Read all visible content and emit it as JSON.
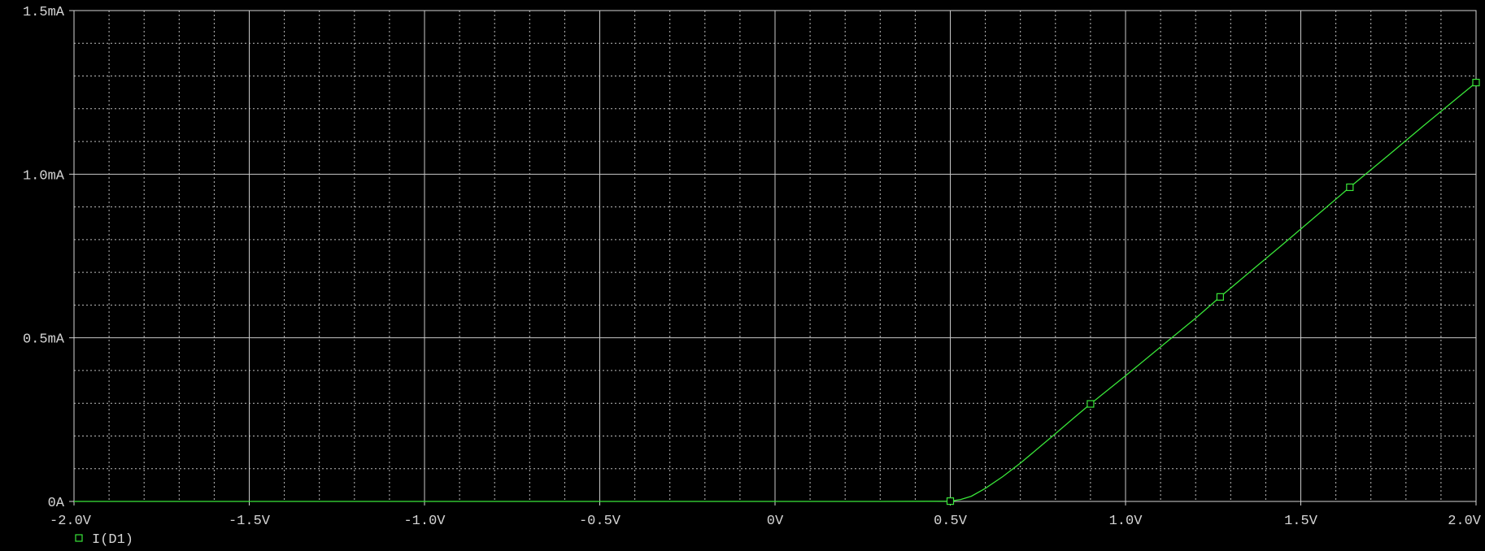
{
  "chart_data": {
    "type": "line",
    "title": "",
    "xlabel": "",
    "ylabel": "",
    "xlim": [
      -2.0,
      2.0
    ],
    "ylim": [
      0,
      1.5
    ],
    "x_ticks": [
      {
        "value": -2.0,
        "label": "-2.0V"
      },
      {
        "value": -1.5,
        "label": "-1.5V"
      },
      {
        "value": -1.0,
        "label": "-1.0V"
      },
      {
        "value": -0.5,
        "label": "-0.5V"
      },
      {
        "value": 0.0,
        "label": "0V"
      },
      {
        "value": 0.5,
        "label": "0.5V"
      },
      {
        "value": 1.0,
        "label": "1.0V"
      },
      {
        "value": 1.5,
        "label": "1.5V"
      },
      {
        "value": 2.0,
        "label": "2.0V"
      }
    ],
    "y_ticks": [
      {
        "value": 0.0,
        "label": "0A"
      },
      {
        "value": 0.5,
        "label": "0.5mA"
      },
      {
        "value": 1.0,
        "label": "1.0mA"
      },
      {
        "value": 1.5,
        "label": "1.5mA"
      }
    ],
    "grid": true,
    "legend_position": "bottom-left",
    "colors": {
      "background": "#000000",
      "axis": "#d4d4d4",
      "grid_major": "#c8c8c8",
      "grid_minor": "#bdbdbd",
      "trace": "#39e639"
    },
    "series": [
      {
        "name": "I(D1)",
        "marker": "square",
        "x": [
          -2.0,
          -1.5,
          -1.0,
          -0.5,
          0.0,
          0.3,
          0.45,
          0.5,
          0.53,
          0.56,
          0.6,
          0.65,
          0.7,
          0.75,
          0.8,
          0.85,
          0.9,
          1.0,
          1.1,
          1.2,
          1.27,
          1.35,
          1.45,
          1.55,
          1.64,
          1.75,
          1.85,
          1.95,
          2.0
        ],
        "y": [
          0,
          0,
          0,
          0,
          0,
          0,
          0.0005,
          0.001,
          0.006,
          0.016,
          0.04,
          0.076,
          0.117,
          0.162,
          0.207,
          0.253,
          0.298,
          0.384,
          0.472,
          0.56,
          0.625,
          0.697,
          0.787,
          0.878,
          0.96,
          1.058,
          1.148,
          1.236,
          1.28
        ],
        "marker_x": [
          0.5,
          0.9,
          1.27,
          1.64,
          2.0
        ]
      }
    ]
  }
}
